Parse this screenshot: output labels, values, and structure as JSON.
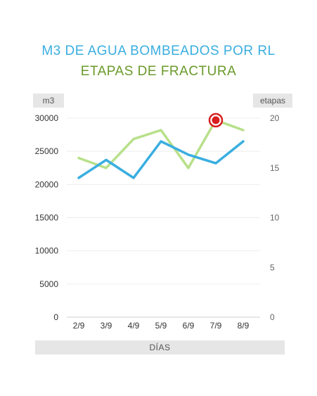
{
  "title": "M3 DE AGUA BOMBEADOS POR RL",
  "subtitle": "ETAPAS DE FRACTURA",
  "colors": {
    "title": "#3aaee0",
    "subtitle": "#6a9a2a",
    "m3_series": "#3aaee0",
    "etapas_series": "#b8e08a",
    "marker": "#d81e1e"
  },
  "chart_data": {
    "type": "line",
    "title": "M3 DE AGUA BOMBEADOS POR RL",
    "subtitle": "ETAPAS DE FRACTURA",
    "xlabel": "DÍAS",
    "ylabel": "m3",
    "y2label": "etapas",
    "categories": [
      "2/9",
      "3/9",
      "4/9",
      "5/9",
      "6/9",
      "7/9",
      "8/9"
    ],
    "ylim": [
      0,
      30000
    ],
    "yticks": [
      "0",
      "5000",
      "10000",
      "15000",
      "20000",
      "25000",
      "30000"
    ],
    "y2lim": [
      0,
      20
    ],
    "y2ticks": [
      "0",
      "5",
      "10",
      "15",
      "20"
    ],
    "grid": true,
    "series": [
      {
        "axis": "left",
        "values": [
          21000,
          23700,
          21000,
          26500,
          24500,
          23200,
          26500
        ]
      },
      {
        "axis": "right",
        "values": [
          16.0,
          15.0,
          17.9,
          18.8,
          15.0,
          19.8,
          18.8
        ]
      }
    ],
    "highlight": {
      "series_index": 1,
      "category": "7/9"
    }
  }
}
